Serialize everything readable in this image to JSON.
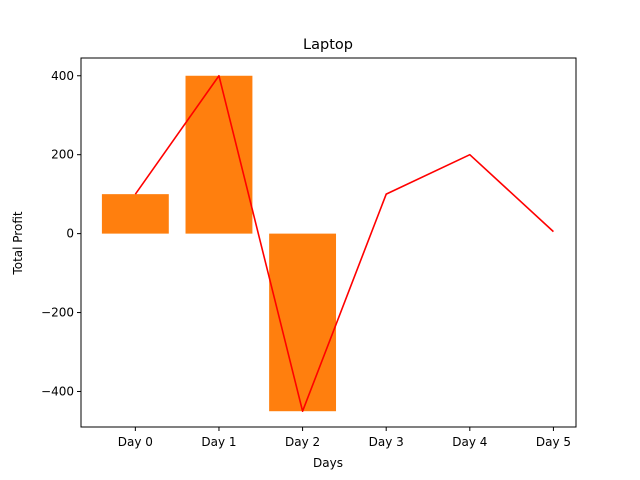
{
  "chart_data": {
    "type": "bar+line",
    "title": "Laptop",
    "xlabel": "Days",
    "ylabel": "Total Profit",
    "categories": [
      "Day 0",
      "Day 1",
      "Day 2",
      "Day 3",
      "Day 4",
      "Day 5"
    ],
    "bar_series": {
      "categories": [
        "Day 0",
        "Day 1",
        "Day 2"
      ],
      "values": [
        100,
        400,
        -450
      ],
      "color": "#ff7f0e"
    },
    "line_series": {
      "values": [
        100,
        400,
        -450,
        100,
        200,
        5
      ],
      "color": "#ff0000"
    },
    "ylim": [
      -490,
      445
    ],
    "yticks": [
      -400,
      -200,
      0,
      200,
      400
    ],
    "ytick_labels": [
      "−400",
      "−200",
      "0",
      "200",
      "400"
    ],
    "grid": false,
    "legend": "none"
  }
}
